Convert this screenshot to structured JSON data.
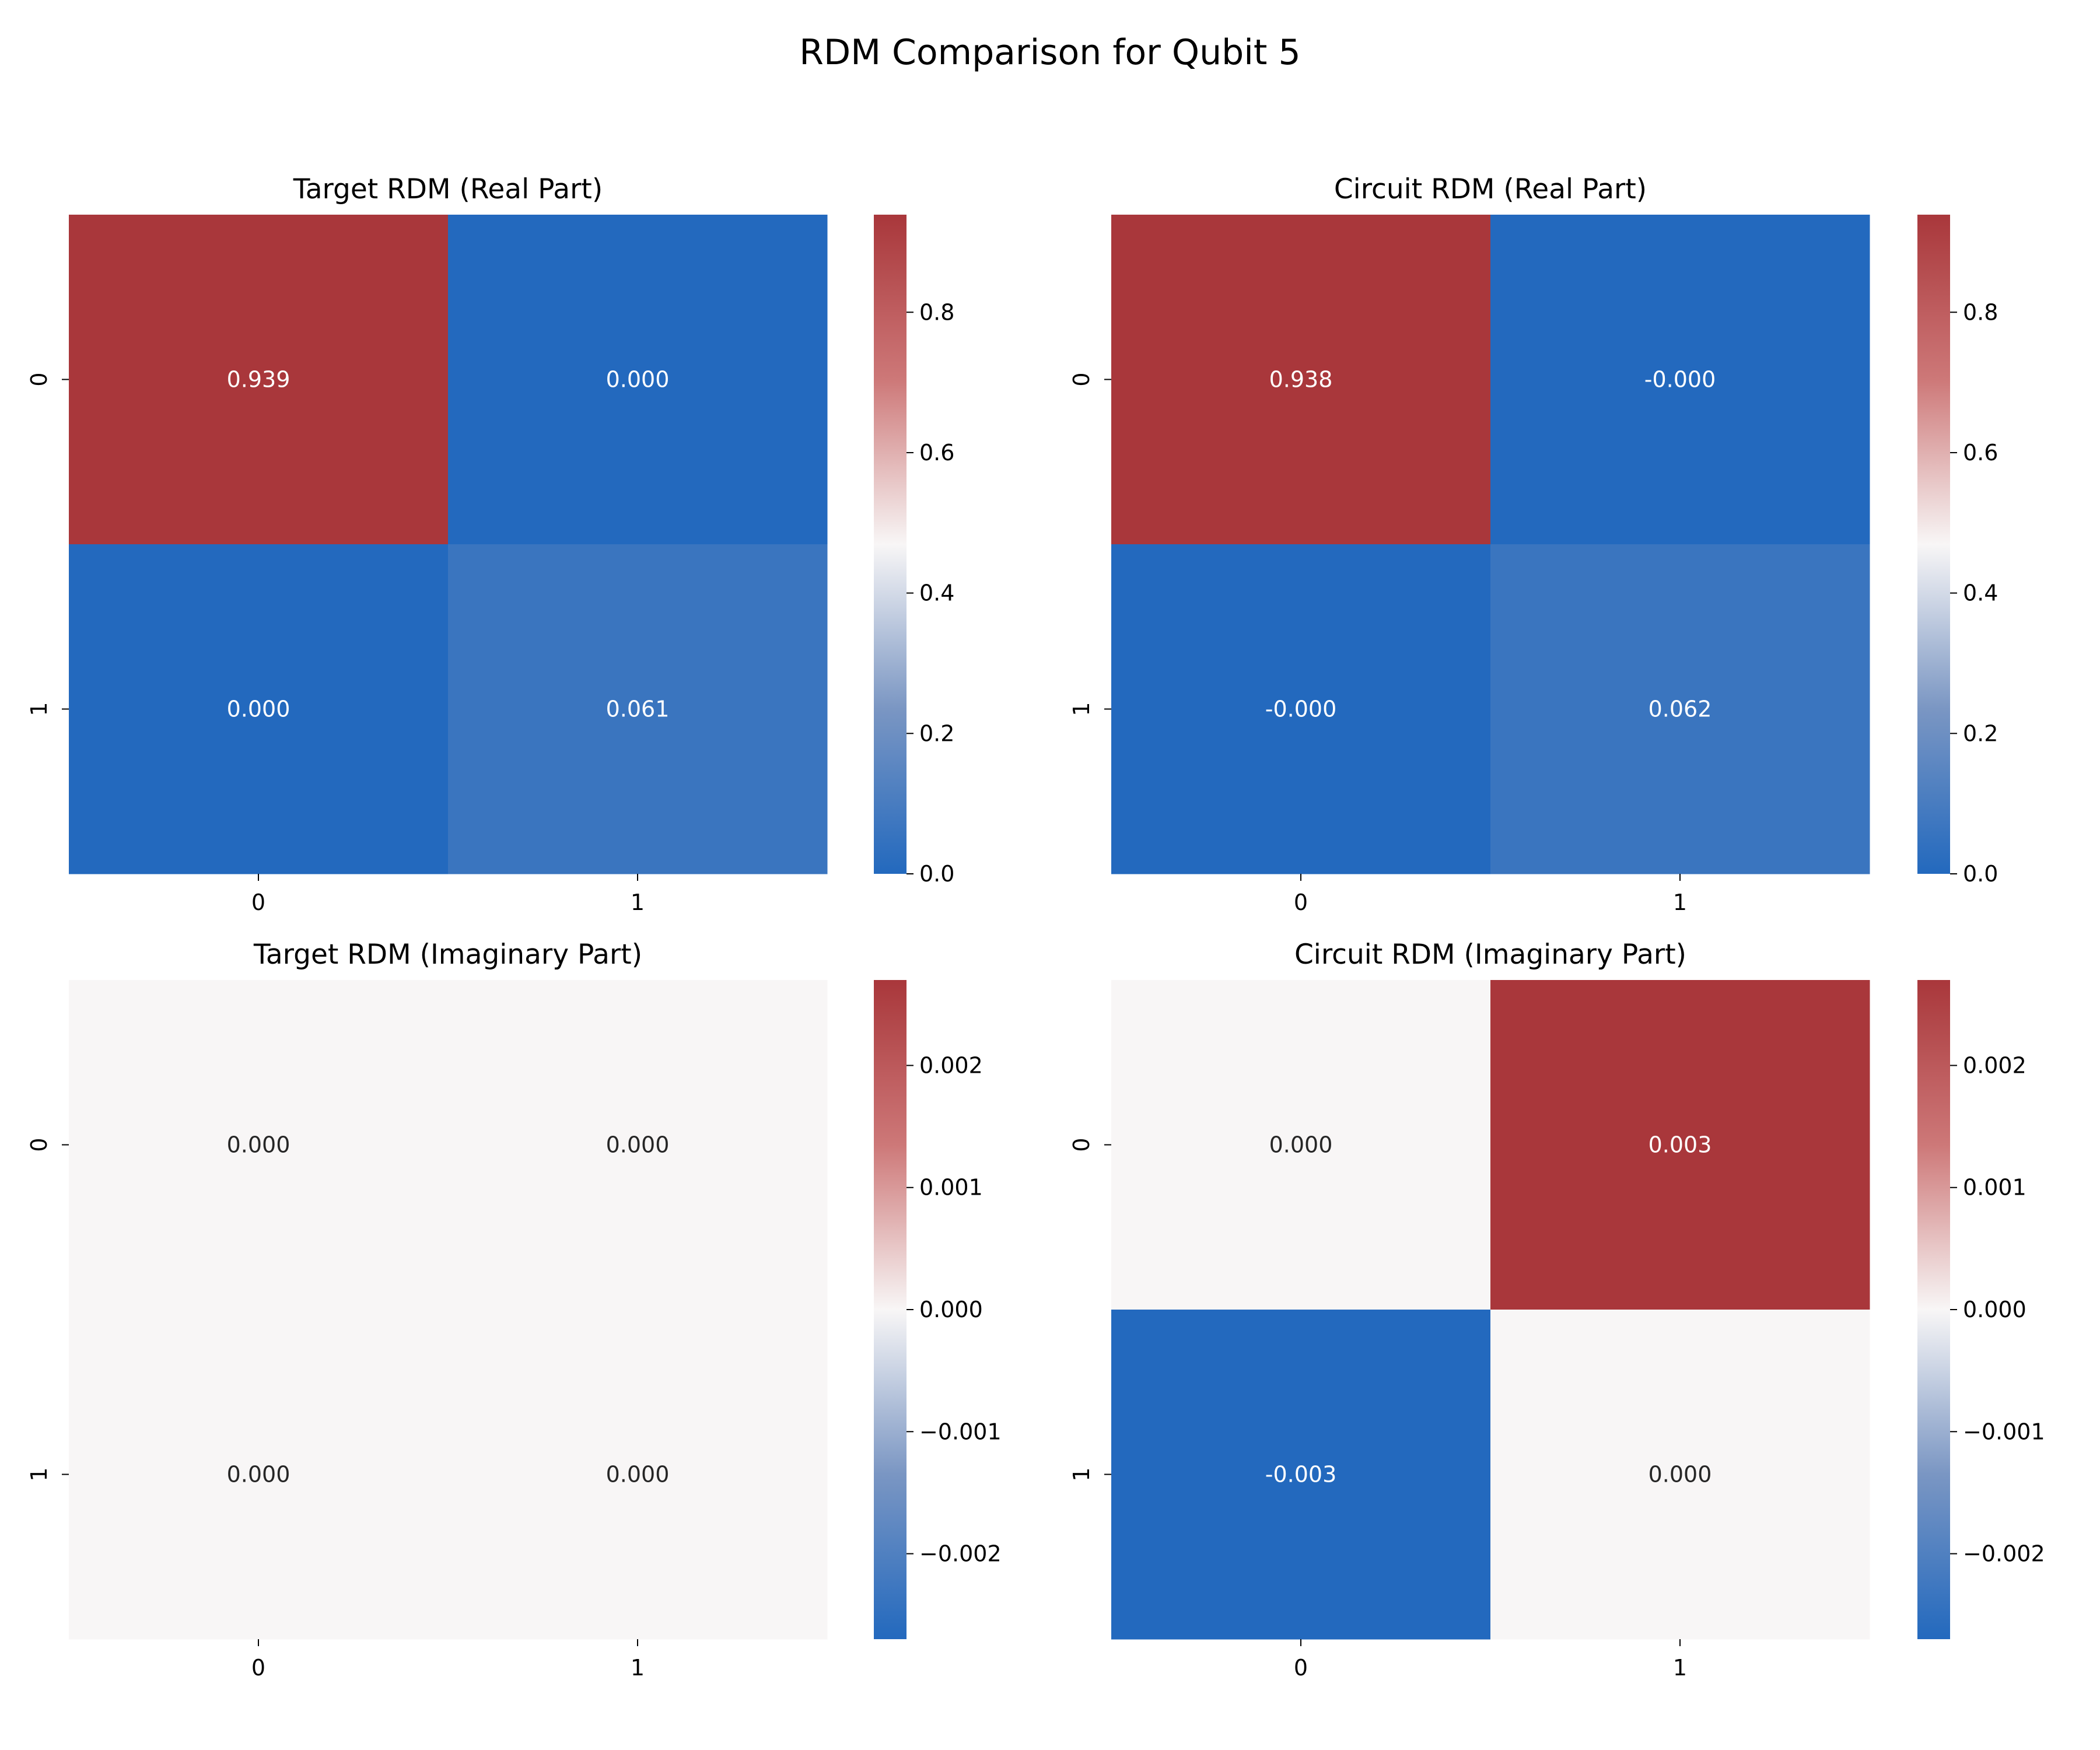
{
  "figure": {
    "title": "RDM Comparison for Qubit 5"
  },
  "chart_data": [
    {
      "type": "heatmap",
      "title": "Target RDM (Real Part)",
      "x_categories": [
        "0",
        "1"
      ],
      "y_categories": [
        "0",
        "1"
      ],
      "values": [
        [
          0.939,
          0.0
        ],
        [
          0.0,
          0.061
        ]
      ],
      "annotations": [
        [
          "0.939",
          "0.000"
        ],
        [
          "0.000",
          "0.061"
        ]
      ],
      "vmin": 0.0,
      "vmax": 0.939,
      "colormap": "vlag",
      "colorbar_ticks": [
        0.0,
        0.2,
        0.4,
        0.6,
        0.8
      ],
      "colorbar_tick_labels": [
        "0.0",
        "0.2",
        "0.4",
        "0.6",
        "0.8"
      ]
    },
    {
      "type": "heatmap",
      "title": "Circuit RDM (Real Part)",
      "x_categories": [
        "0",
        "1"
      ],
      "y_categories": [
        "0",
        "1"
      ],
      "values": [
        [
          0.938,
          -0.0
        ],
        [
          -0.0,
          0.062
        ]
      ],
      "annotations": [
        [
          "0.938",
          "-0.000"
        ],
        [
          "-0.000",
          "0.062"
        ]
      ],
      "vmin": 0.0,
      "vmax": 0.939,
      "colormap": "vlag",
      "colorbar_ticks": [
        0.0,
        0.2,
        0.4,
        0.6,
        0.8
      ],
      "colorbar_tick_labels": [
        "0.0",
        "0.2",
        "0.4",
        "0.6",
        "0.8"
      ]
    },
    {
      "type": "heatmap",
      "title": "Target RDM (Imaginary Part)",
      "x_categories": [
        "0",
        "1"
      ],
      "y_categories": [
        "0",
        "1"
      ],
      "values": [
        [
          0.0,
          0.0
        ],
        [
          0.0,
          0.0
        ]
      ],
      "annotations": [
        [
          "0.000",
          "0.000"
        ],
        [
          "0.000",
          "0.000"
        ]
      ],
      "vmin": -0.0027,
      "vmax": 0.0027,
      "colormap": "vlag",
      "colorbar_ticks": [
        -0.002,
        -0.001,
        0.0,
        0.001,
        0.002
      ],
      "colorbar_tick_labels": [
        "−0.002",
        "−0.001",
        "0.000",
        "0.001",
        "0.002"
      ]
    },
    {
      "type": "heatmap",
      "title": "Circuit RDM (Imaginary Part)",
      "x_categories": [
        "0",
        "1"
      ],
      "y_categories": [
        "0",
        "1"
      ],
      "values": [
        [
          0.0,
          0.0027
        ],
        [
          -0.0027,
          0.0
        ]
      ],
      "annotations": [
        [
          "0.000",
          "0.003"
        ],
        [
          "-0.003",
          "0.000"
        ]
      ],
      "vmin": -0.0027,
      "vmax": 0.0027,
      "colormap": "vlag",
      "colorbar_ticks": [
        -0.002,
        -0.001,
        0.0,
        0.001,
        0.002
      ],
      "colorbar_tick_labels": [
        "−0.002",
        "−0.001",
        "0.000",
        "0.001",
        "0.002"
      ]
    }
  ]
}
